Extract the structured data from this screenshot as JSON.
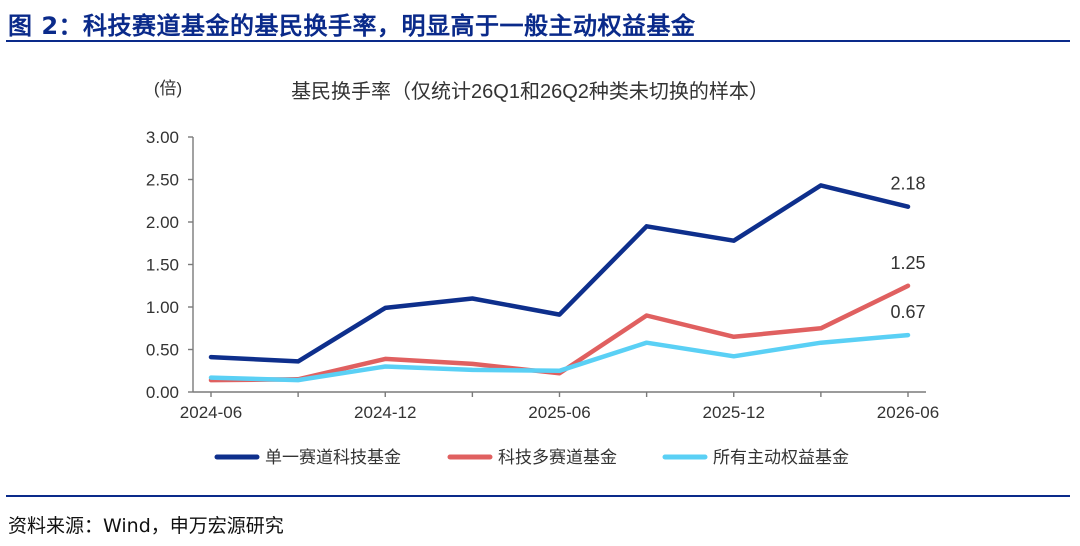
{
  "figure": {
    "title": "图 2：科技赛道基金的基民换手率，明显高于一般主动权益基金",
    "source": "资料来源：Wind，申万宏源研究"
  },
  "chart_data": {
    "type": "line",
    "title": "基民换手率（仅统计26Q1和26Q2种类未切换的样本）",
    "unit_label": "(倍)",
    "x": [
      "2024-06",
      "2024-09",
      "2024-12",
      "2025-03",
      "2025-06",
      "2025-09",
      "2025-12",
      "2026-03",
      "2026-06"
    ],
    "x_tick_labels": [
      "2024-06",
      "2024-12",
      "2025-06",
      "2025-12",
      "2026-06"
    ],
    "ylim": [
      0,
      3
    ],
    "y_ticks": [
      "0.00",
      "0.50",
      "1.00",
      "1.50",
      "2.00",
      "2.50",
      "3.00"
    ],
    "grid": false,
    "legend_position": "bottom",
    "series": [
      {
        "name": "单一赛道科技基金",
        "color": "#0e2f8c",
        "values": [
          0.41,
          0.36,
          0.99,
          1.1,
          0.91,
          1.95,
          1.78,
          2.43,
          2.18
        ]
      },
      {
        "name": "科技多赛道基金",
        "color": "#e06060",
        "values": [
          0.14,
          0.15,
          0.39,
          0.33,
          0.22,
          0.9,
          0.65,
          0.75,
          1.25
        ]
      },
      {
        "name": "所有主动权益基金",
        "color": "#5ad0f5",
        "values": [
          0.17,
          0.14,
          0.3,
          0.26,
          0.25,
          0.58,
          0.42,
          0.58,
          0.67
        ]
      }
    ],
    "data_labels": [
      "2.18",
      "1.25",
      "0.67"
    ]
  }
}
